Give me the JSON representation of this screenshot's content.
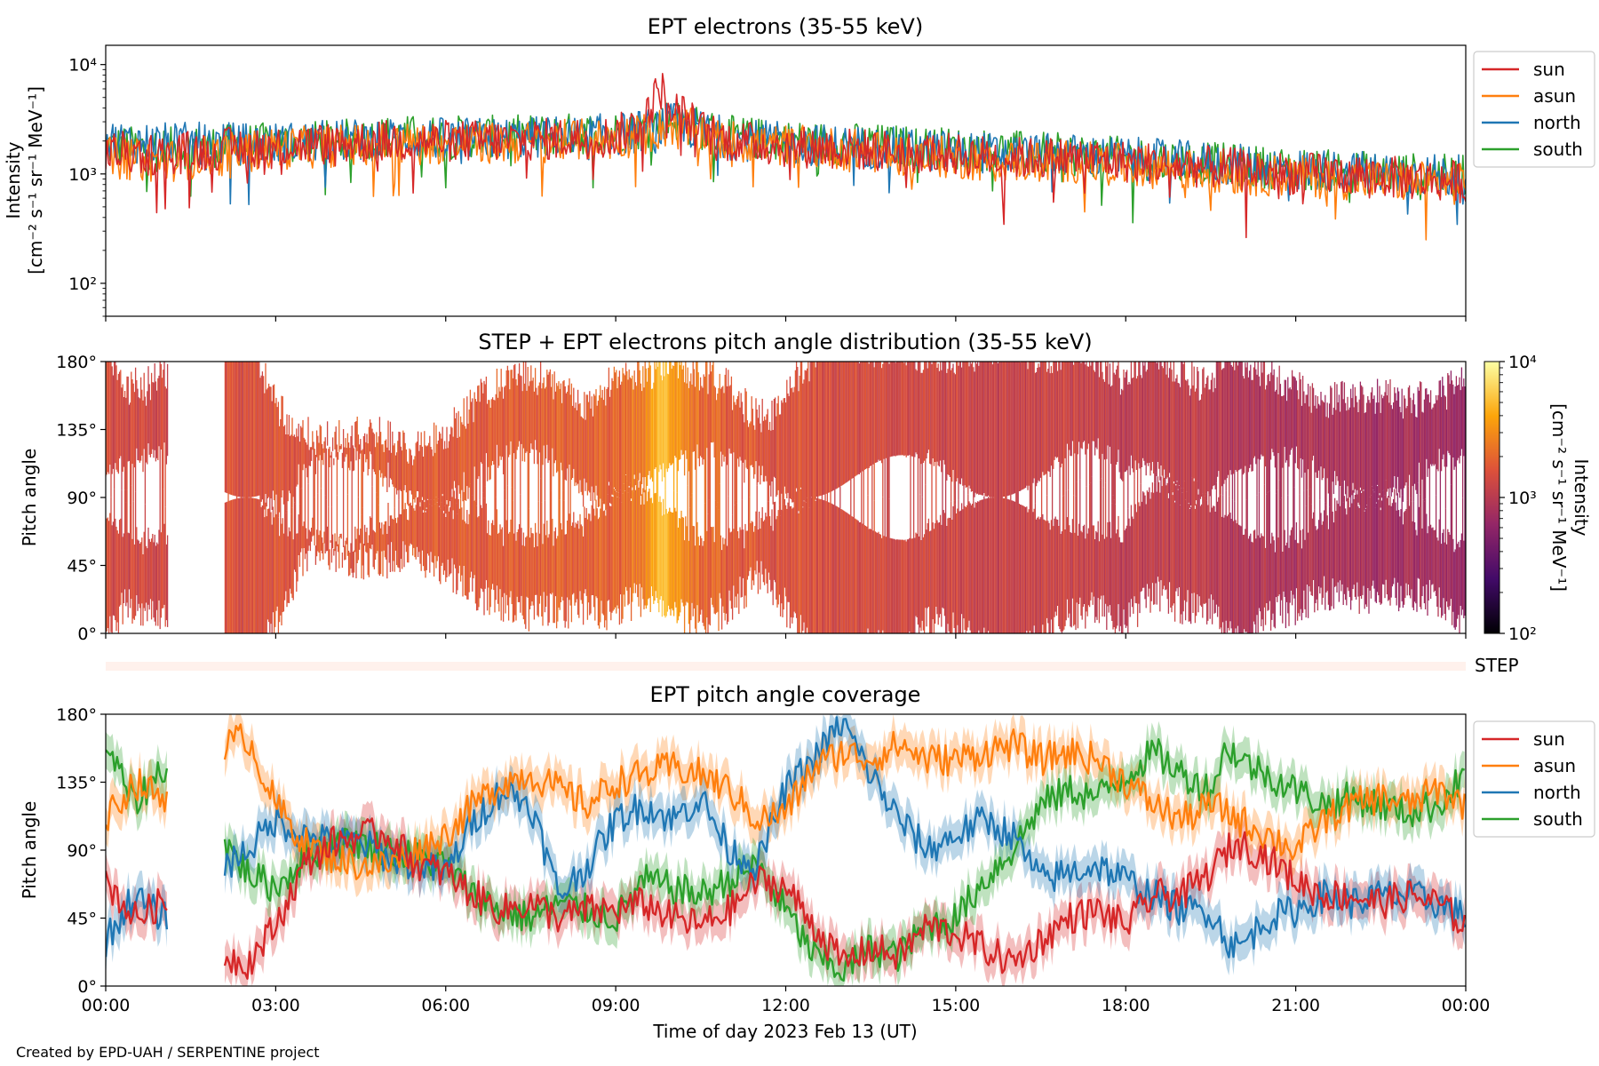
{
  "credit": "Created by EPD-UAH / SERPENTINE project",
  "colors": {
    "sun": "#d62728",
    "asun": "#ff7f0e",
    "north": "#1f77b4",
    "south": "#2ca02c",
    "step_band": "#fff1ec"
  },
  "step_label": "STEP",
  "chart_data": [
    {
      "type": "line",
      "title": "EPT electrons (35-55 keV)",
      "ylabel_line1": "Intensity",
      "ylabel_line2": "[cm⁻² s⁻¹ sr⁻¹ MeV⁻¹]",
      "yscale": "log",
      "ylim": [
        50,
        15000
      ],
      "yticks": [
        "10²",
        "10³",
        "10⁴"
      ],
      "legend": [
        "sun",
        "asun",
        "north",
        "south"
      ],
      "legend_position": "outside-upper-right",
      "x_hours": [
        0,
        1,
        2,
        3,
        4,
        5,
        6,
        7,
        8,
        9,
        9.5,
        9.8,
        10,
        10.5,
        11,
        12,
        13,
        14,
        15,
        16,
        17,
        18,
        19,
        20,
        21,
        22,
        23,
        24
      ],
      "series": [
        {
          "name": "sun",
          "values": [
            1600,
            1500,
            1700,
            1800,
            1900,
            2000,
            2000,
            2000,
            2100,
            2200,
            3000,
            6000,
            4000,
            2500,
            2000,
            1800,
            1700,
            1600,
            1500,
            1400,
            1400,
            1300,
            1200,
            1100,
            1000,
            1000,
            900,
            850
          ]
        },
        {
          "name": "asun",
          "values": [
            1400,
            1300,
            1500,
            1700,
            1800,
            1900,
            1900,
            1900,
            2000,
            2100,
            2300,
            2600,
            2800,
            2400,
            2000,
            1800,
            1700,
            1500,
            1400,
            1300,
            1300,
            1200,
            1100,
            1000,
            950,
            900,
            850,
            800
          ]
        },
        {
          "name": "north",
          "values": [
            2000,
            1900,
            1900,
            1900,
            2000,
            2100,
            2100,
            2100,
            2200,
            2300,
            2500,
            2700,
            2900,
            2500,
            2100,
            1900,
            1800,
            1700,
            1600,
            1500,
            1500,
            1400,
            1300,
            1200,
            1100,
            1050,
            1000,
            950
          ]
        },
        {
          "name": "south",
          "values": [
            1800,
            1700,
            1800,
            1900,
            2000,
            2200,
            2200,
            2200,
            2300,
            2400,
            2600,
            3000,
            3200,
            2600,
            2200,
            2000,
            1900,
            1800,
            1700,
            1600,
            1500,
            1400,
            1300,
            1200,
            1100,
            1050,
            1000,
            950
          ]
        }
      ]
    },
    {
      "type": "heatmap",
      "title": "STEP + EPT electrons pitch angle distribution (35-55 keV)",
      "ylabel": "Pitch angle",
      "ylim": [
        0,
        180
      ],
      "yticks": [
        "0°",
        "45°",
        "90°",
        "135°",
        "180°"
      ],
      "data_gaps_hours": [
        [
          1.1,
          2.1
        ]
      ],
      "colorbar": {
        "label": "Intensity",
        "sublabel": "[cm⁻² s⁻¹ sr⁻¹ MeV⁻¹]",
        "scale": "log",
        "range": [
          100,
          10000
        ],
        "ticks": [
          "10²",
          "10³",
          "10⁴"
        ],
        "colormap": "inferno"
      }
    },
    {
      "type": "line",
      "title": "EPT pitch angle coverage",
      "ylabel": "Pitch angle",
      "xlabel": "Time of day 2023 Feb 13 (UT)",
      "ylim": [
        0,
        180
      ],
      "yticks": [
        "0°",
        "45°",
        "90°",
        "135°",
        "180°"
      ],
      "xlim_hours": [
        0,
        24
      ],
      "xticks": [
        "00:00",
        "03:00",
        "06:00",
        "09:00",
        "12:00",
        "15:00",
        "18:00",
        "21:00",
        "00:00"
      ],
      "data_gaps_hours": [
        [
          1.1,
          2.1
        ]
      ],
      "legend": [
        "sun",
        "asun",
        "north",
        "south"
      ],
      "legend_position": "outside-upper-right",
      "x_hours": [
        0,
        0.5,
        1,
        2.1,
        2.5,
        3,
        3.5,
        4,
        4.5,
        5,
        5.5,
        6,
        6.5,
        7,
        7.5,
        8,
        8.5,
        9,
        9.5,
        10,
        10.5,
        11,
        11.5,
        12,
        12.5,
        13,
        13.5,
        14,
        14.5,
        15,
        15.5,
        16,
        16.5,
        17,
        17.5,
        18,
        18.5,
        19,
        19.5,
        19.8,
        20,
        20.5,
        21,
        21.5,
        22,
        22.5,
        23,
        23.5,
        24
      ],
      "series": [
        {
          "name": "sun",
          "values": [
            70,
            45,
            55,
            20,
            15,
            40,
            80,
            95,
            100,
            100,
            80,
            75,
            60,
            50,
            55,
            45,
            50,
            50,
            55,
            45,
            40,
            50,
            70,
            65,
            40,
            15,
            25,
            20,
            40,
            35,
            25,
            15,
            30,
            45,
            50,
            40,
            60,
            60,
            75,
            90,
            95,
            85,
            70,
            60,
            60,
            55,
            60,
            55,
            40
          ]
        },
        {
          "name": "asun",
          "values": [
            110,
            135,
            125,
            160,
            165,
            120,
            95,
            85,
            80,
            80,
            90,
            100,
            120,
            135,
            140,
            130,
            120,
            135,
            140,
            145,
            140,
            130,
            110,
            115,
            145,
            155,
            150,
            160,
            150,
            150,
            155,
            160,
            150,
            155,
            150,
            135,
            120,
            110,
            120,
            115,
            110,
            100,
            90,
            110,
            120,
            125,
            120,
            130,
            120
          ]
        },
        {
          "name": "north",
          "values": [
            30,
            60,
            45,
            80,
            90,
            110,
            100,
            95,
            95,
            85,
            80,
            75,
            110,
            130,
            120,
            60,
            80,
            110,
            120,
            110,
            125,
            90,
            80,
            130,
            150,
            175,
            140,
            110,
            90,
            100,
            110,
            100,
            70,
            75,
            80,
            70,
            60,
            50,
            50,
            30,
            25,
            45,
            50,
            60,
            55,
            60,
            60,
            55,
            45
          ]
        },
        {
          "name": "south",
          "values": [
            160,
            120,
            145,
            95,
            75,
            65,
            85,
            95,
            95,
            90,
            85,
            80,
            60,
            50,
            45,
            55,
            50,
            45,
            70,
            65,
            60,
            70,
            80,
            50,
            20,
            10,
            25,
            20,
            40,
            45,
            70,
            90,
            120,
            130,
            125,
            140,
            155,
            140,
            130,
            160,
            150,
            140,
            130,
            120,
            125,
            120,
            115,
            120,
            140
          ]
        }
      ]
    }
  ]
}
